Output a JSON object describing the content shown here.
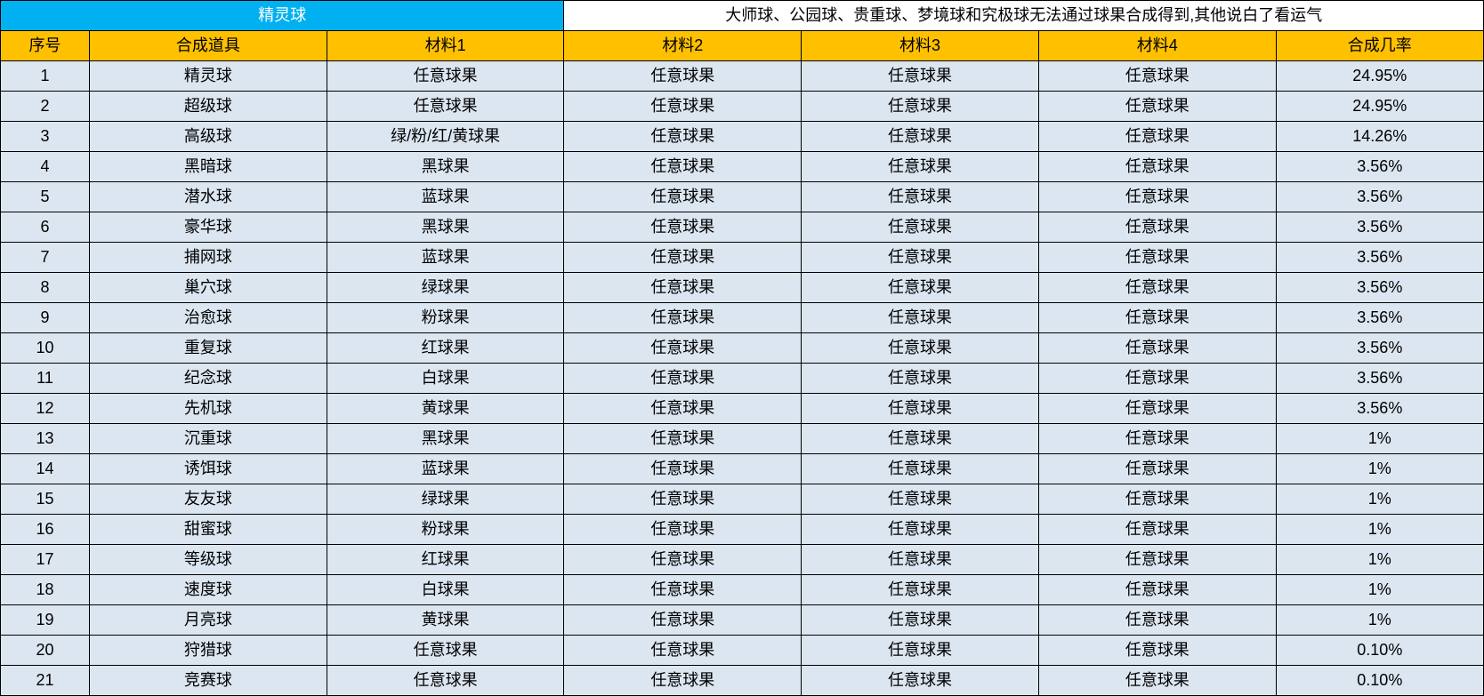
{
  "table": {
    "title_left": "精灵球",
    "title_right": "大师球、公园球、贵重球、梦境球和究极球无法通过球果合成得到,其他说白了看运气",
    "title_left_colspan": 3,
    "title_right_colspan": 4,
    "columns": [
      "序号",
      "合成道具",
      "材料1",
      "材料2",
      "材料3",
      "材料4",
      "合成几率"
    ],
    "column_widths": [
      "6%",
      "16%",
      "16%",
      "16%",
      "16%",
      "16%",
      "14%"
    ],
    "colors": {
      "title_left_bg": "#00b0f0",
      "title_left_fg": "#ffffff",
      "title_right_bg": "#ffffff",
      "title_right_fg": "#000000",
      "header_bg": "#ffc000",
      "header_fg": "#000000",
      "data_bg": "#dce6f1",
      "data_fg": "#000000",
      "border": "#000000"
    },
    "font_size": 18,
    "rows": [
      [
        "1",
        "精灵球",
        "任意球果",
        "任意球果",
        "任意球果",
        "任意球果",
        "24.95%"
      ],
      [
        "2",
        "超级球",
        "任意球果",
        "任意球果",
        "任意球果",
        "任意球果",
        "24.95%"
      ],
      [
        "3",
        "高级球",
        "绿/粉/红/黄球果",
        "任意球果",
        "任意球果",
        "任意球果",
        "14.26%"
      ],
      [
        "4",
        "黑暗球",
        "黑球果",
        "任意球果",
        "任意球果",
        "任意球果",
        "3.56%"
      ],
      [
        "5",
        "潜水球",
        "蓝球果",
        "任意球果",
        "任意球果",
        "任意球果",
        "3.56%"
      ],
      [
        "6",
        "豪华球",
        "黑球果",
        "任意球果",
        "任意球果",
        "任意球果",
        "3.56%"
      ],
      [
        "7",
        "捕网球",
        "蓝球果",
        "任意球果",
        "任意球果",
        "任意球果",
        "3.56%"
      ],
      [
        "8",
        "巢穴球",
        "绿球果",
        "任意球果",
        "任意球果",
        "任意球果",
        "3.56%"
      ],
      [
        "9",
        "治愈球",
        "粉球果",
        "任意球果",
        "任意球果",
        "任意球果",
        "3.56%"
      ],
      [
        "10",
        "重复球",
        "红球果",
        "任意球果",
        "任意球果",
        "任意球果",
        "3.56%"
      ],
      [
        "11",
        "纪念球",
        "白球果",
        "任意球果",
        "任意球果",
        "任意球果",
        "3.56%"
      ],
      [
        "12",
        "先机球",
        "黄球果",
        "任意球果",
        "任意球果",
        "任意球果",
        "3.56%"
      ],
      [
        "13",
        "沉重球",
        "黑球果",
        "任意球果",
        "任意球果",
        "任意球果",
        "1%"
      ],
      [
        "14",
        "诱饵球",
        "蓝球果",
        "任意球果",
        "任意球果",
        "任意球果",
        "1%"
      ],
      [
        "15",
        "友友球",
        "绿球果",
        "任意球果",
        "任意球果",
        "任意球果",
        "1%"
      ],
      [
        "16",
        "甜蜜球",
        "粉球果",
        "任意球果",
        "任意球果",
        "任意球果",
        "1%"
      ],
      [
        "17",
        "等级球",
        "红球果",
        "任意球果",
        "任意球果",
        "任意球果",
        "1%"
      ],
      [
        "18",
        "速度球",
        "白球果",
        "任意球果",
        "任意球果",
        "任意球果",
        "1%"
      ],
      [
        "19",
        "月亮球",
        "黄球果",
        "任意球果",
        "任意球果",
        "任意球果",
        "1%"
      ],
      [
        "20",
        "狩猎球",
        "任意球果",
        "任意球果",
        "任意球果",
        "任意球果",
        "0.10%"
      ],
      [
        "21",
        "竞赛球",
        "任意球果",
        "任意球果",
        "任意球果",
        "任意球果",
        "0.10%"
      ]
    ]
  }
}
